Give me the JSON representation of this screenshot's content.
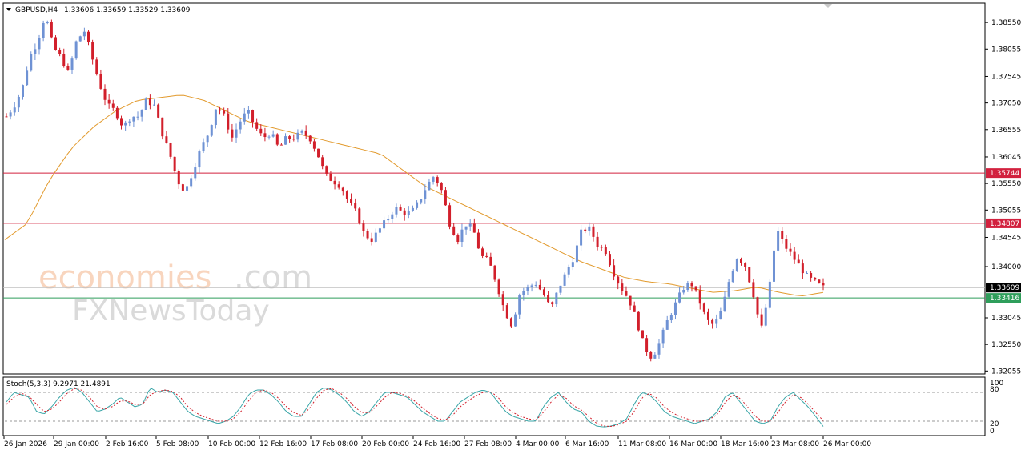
{
  "header": {
    "symbol_label": "GBPUSD,H4",
    "ohlc_text": "1.33606 1.33659 1.33529 1.33609"
  },
  "watermark": {
    "brand_main": "economies",
    "brand_suffix": ".com",
    "sub_brand": "FXNewsToday"
  },
  "stochastic": {
    "label": "Stoch(5,3,3) 9.2971 21.4891",
    "levels": [
      "100",
      "80",
      "20",
      "0"
    ]
  },
  "colors": {
    "bull": "#6f92d4",
    "bear": "#d21f2b",
    "ma": "#e29a2d",
    "resistance": "#d2213e",
    "support": "#2f9e5b",
    "price_line": "#c0c0c0",
    "stoch_main": "#3aa6a8",
    "stoch_signal": "#d21f2b"
  },
  "chart_data": {
    "type": "candlestick",
    "title": "GBPUSD,H4",
    "ylim": [
      1.3203,
      1.3888
    ],
    "y_ticks": [
      "1.38550",
      "1.38055",
      "1.37545",
      "1.37050",
      "1.36555",
      "1.36045",
      "1.35550",
      "1.35055",
      "1.34545",
      "1.34000",
      "1.33045",
      "1.32550",
      "1.32055"
    ],
    "x_ticks": [
      "26 Jan 2026",
      "29 Jan 00:00",
      "2 Feb 16:00",
      "5 Feb 08:00",
      "10 Feb 00:00",
      "12 Feb 16:00",
      "17 Feb 08:00",
      "20 Feb 00:00",
      "24 Feb 16:00",
      "27 Feb 08:00",
      "4 Mar 00:00",
      "6 Mar 16:00",
      "11 Mar 08:00",
      "16 Mar 00:00",
      "18 Mar 16:00",
      "23 Mar 08:00",
      "26 Mar 00:00"
    ],
    "levels": [
      {
        "label": "1.35744",
        "value": 1.35744,
        "kind": "resistance"
      },
      {
        "label": "1.34807",
        "value": 1.34807,
        "kind": "resistance"
      },
      {
        "label": "1.33609",
        "value": 1.33609,
        "kind": "current"
      },
      {
        "label": "1.33416",
        "value": 1.33416,
        "kind": "support"
      }
    ],
    "price_path": [
      1.368,
      1.37,
      1.373,
      1.379,
      1.382,
      1.387,
      1.381,
      1.379,
      1.376,
      1.382,
      1.384,
      1.379,
      1.374,
      1.37,
      1.369,
      1.366,
      1.368,
      1.368,
      1.371,
      1.37,
      1.365,
      1.361,
      1.356,
      1.354,
      1.358,
      1.362,
      1.365,
      1.37,
      1.368,
      1.364,
      1.367,
      1.369,
      1.366,
      1.364,
      1.365,
      1.362,
      1.364,
      1.364,
      1.365,
      1.364,
      1.361,
      1.357,
      1.356,
      1.355,
      1.352,
      1.35,
      1.346,
      1.345,
      1.347,
      1.349,
      1.351,
      1.35,
      1.35,
      1.352,
      1.355,
      1.357,
      1.354,
      1.348,
      1.345,
      1.348,
      1.347,
      1.342,
      1.341,
      1.337,
      1.332,
      1.329,
      1.335,
      1.336,
      1.337,
      1.335,
      1.332,
      1.336,
      1.339,
      1.342,
      1.347,
      1.347,
      1.344,
      1.343,
      1.339,
      1.336,
      1.334,
      1.33,
      1.325,
      1.323,
      1.326,
      1.33,
      1.333,
      1.336,
      1.337,
      1.334,
      1.33,
      1.329,
      1.332,
      1.338,
      1.342,
      1.34,
      1.335,
      1.328,
      1.335,
      1.347,
      1.344,
      1.342,
      1.34,
      1.338,
      1.337,
      1.3361
    ],
    "ma_path": [
      1.345,
      1.348,
      1.356,
      1.362,
      1.366,
      1.369,
      1.371,
      1.3715,
      1.372,
      1.371,
      1.369,
      1.367,
      1.366,
      1.365,
      1.364,
      1.363,
      1.362,
      1.361,
      1.358,
      1.355,
      1.353,
      1.351,
      1.349,
      1.347,
      1.345,
      1.343,
      1.341,
      1.3395,
      1.338,
      1.3372,
      1.3368,
      1.336,
      1.3352,
      1.3355,
      1.3362,
      1.3352,
      1.3345,
      1.3352
    ],
    "stoch_main": [
      60,
      80,
      75,
      70,
      40,
      35,
      50,
      70,
      85,
      90,
      80,
      60,
      40,
      45,
      55,
      70,
      60,
      50,
      55,
      90,
      80,
      85,
      80,
      60,
      40,
      30,
      25,
      20,
      15,
      20,
      30,
      50,
      75,
      85,
      85,
      75,
      60,
      40,
      30,
      30,
      55,
      80,
      90,
      85,
      75,
      60,
      40,
      30,
      40,
      60,
      80,
      80,
      75,
      70,
      55,
      40,
      30,
      20,
      20,
      40,
      60,
      70,
      80,
      85,
      80,
      60,
      40,
      30,
      25,
      20,
      20,
      50,
      70,
      80,
      60,
      45,
      40,
      20,
      10,
      8,
      10,
      15,
      25,
      55,
      80,
      75,
      60,
      40,
      30,
      25,
      20,
      15,
      20,
      25,
      40,
      70,
      80,
      60,
      40,
      20,
      15,
      20,
      50,
      70,
      80,
      65,
      50,
      30,
      9
    ],
    "stoch_signal": [
      55,
      70,
      78,
      72,
      55,
      40,
      45,
      60,
      78,
      88,
      85,
      70,
      50,
      45,
      50,
      62,
      62,
      55,
      55,
      75,
      82,
      85,
      82,
      70,
      50,
      38,
      30,
      25,
      20,
      20,
      25,
      40,
      62,
      80,
      85,
      80,
      68,
      50,
      38,
      32,
      45,
      68,
      85,
      88,
      80,
      68,
      50,
      38,
      38,
      52,
      70,
      80,
      78,
      72,
      62,
      48,
      36,
      26,
      22,
      32,
      50,
      62,
      72,
      80,
      82,
      70,
      50,
      38,
      30,
      25,
      22,
      38,
      60,
      75,
      68,
      52,
      44,
      30,
      16,
      10,
      9,
      13,
      20,
      40,
      68,
      78,
      68,
      50,
      38,
      30,
      25,
      20,
      20,
      24,
      34,
      58,
      75,
      68,
      50,
      30,
      20,
      20,
      38,
      60,
      75,
      70,
      56,
      38,
      21
    ]
  }
}
